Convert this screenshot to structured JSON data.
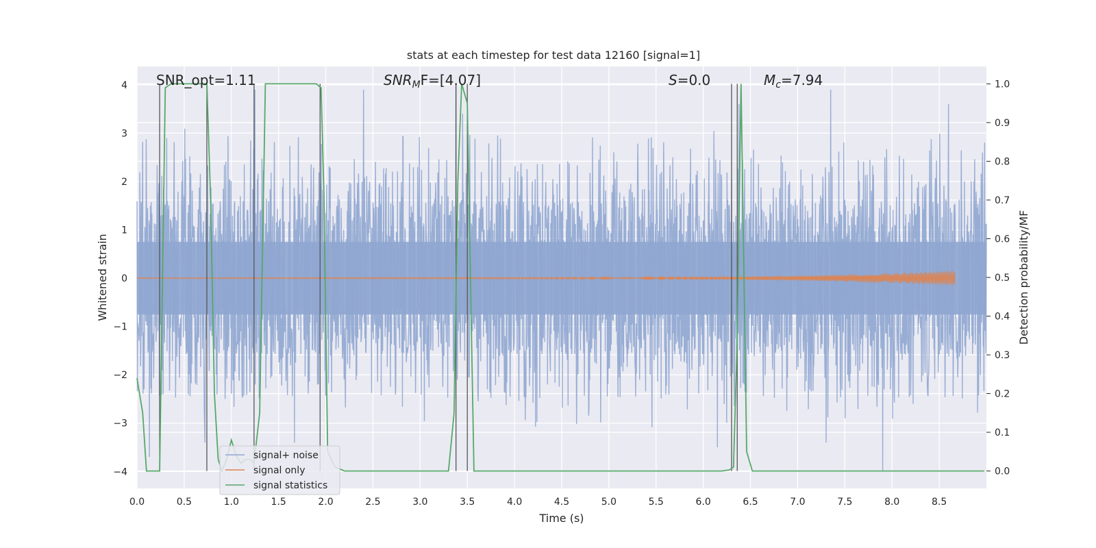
{
  "chart_data": {
    "type": "line",
    "title": "stats at each timestep for test data 12160 [signal=1]",
    "xlabel": "Time (s)",
    "ylabel": "Whitened strain",
    "y2label": "Detection probability/MF",
    "xlim": [
      0.0,
      9.0
    ],
    "ylim": [
      -4.35,
      4.38
    ],
    "y2lim": [
      -0.045,
      1.045
    ],
    "xticks": [
      "0.0",
      "0.5",
      "1.0",
      "1.5",
      "2.0",
      "2.5",
      "3.0",
      "3.5",
      "4.0",
      "4.5",
      "5.0",
      "5.5",
      "6.0",
      "6.5",
      "7.0",
      "7.5",
      "8.0",
      "8.5"
    ],
    "yticks": [
      "4",
      "3",
      "2",
      "1",
      "0",
      "−1",
      "−2",
      "−3",
      "−4"
    ],
    "y2ticks": [
      "1.0",
      "0.9",
      "0.8",
      "0.7",
      "0.6",
      "0.5",
      "0.4",
      "0.3",
      "0.2",
      "0.1",
      "0.0"
    ],
    "grid": true,
    "legend_position": "lower-left",
    "series": [
      {
        "name": "signal+ noise",
        "axis": "left",
        "kind": "noise",
        "color": "#8fa6d0",
        "band_abs_max": 1.6,
        "typical_peak": 2.5,
        "extreme_spikes": [
          {
            "t": 0.13,
            "y": -3.7
          },
          {
            "t": 0.72,
            "y": -3.4
          },
          {
            "t": 1.25,
            "y": 3.9
          },
          {
            "t": 1.67,
            "y": -3.4
          },
          {
            "t": 2.4,
            "y": 3.9
          },
          {
            "t": 3.38,
            "y": 4.0
          },
          {
            "t": 3.45,
            "y": 3.4
          },
          {
            "t": 6.15,
            "y": -3.5
          },
          {
            "t": 6.38,
            "y": 3.6
          },
          {
            "t": 7.3,
            "y": -3.4
          },
          {
            "t": 7.35,
            "y": 3.9
          },
          {
            "t": 7.9,
            "y": -4.0
          },
          {
            "t": 8.6,
            "y": 3.6
          }
        ]
      },
      {
        "name": "signal only",
        "axis": "left",
        "kind": "chirp",
        "color": "#dd8452",
        "start_t": 0.0,
        "end_t": 8.67,
        "max_amplitude": 0.15
      },
      {
        "name": "signal statistics",
        "axis": "right",
        "kind": "line",
        "color": "#55a868",
        "x": [
          0.0,
          0.06,
          0.1,
          0.15,
          0.2,
          0.24,
          0.3,
          0.36,
          0.42,
          0.5,
          0.6,
          0.7,
          0.74,
          0.78,
          0.82,
          0.86,
          0.9,
          0.95,
          1.0,
          1.05,
          1.1,
          1.15,
          1.2,
          1.24,
          1.3,
          1.36,
          1.42,
          1.5,
          1.6,
          1.7,
          1.8,
          1.9,
          1.95,
          1.98,
          2.02,
          2.1,
          2.2,
          2.5,
          3.0,
          3.3,
          3.36,
          3.4,
          3.44,
          3.5,
          3.57,
          3.7,
          4.0,
          4.5,
          4.9,
          5.0,
          5.5,
          6.0,
          6.2,
          6.28,
          6.32,
          6.36,
          6.4,
          6.46,
          6.52,
          7.0,
          8.0,
          8.98
        ],
        "y": [
          0.24,
          0.15,
          0.0,
          0.0,
          0.0,
          0.0,
          0.99,
          1.0,
          1.0,
          1.0,
          1.0,
          1.0,
          1.0,
          0.7,
          0.2,
          0.03,
          0.0,
          0.03,
          0.08,
          0.04,
          0.02,
          0.03,
          0.03,
          0.02,
          0.15,
          1.0,
          1.0,
          1.0,
          1.0,
          1.0,
          1.0,
          1.0,
          0.99,
          0.72,
          0.05,
          0.01,
          0.0,
          0.0,
          0.0,
          0.0,
          0.15,
          0.75,
          1.0,
          0.95,
          0.0,
          0.0,
          0.0,
          0.0,
          0.0,
          0.0,
          0.0,
          0.0,
          0.0,
          0.003,
          0.01,
          0.35,
          1.0,
          0.05,
          0.0,
          0.0,
          0.0,
          0.0
        ]
      }
    ],
    "vlines": [
      0.24,
      0.74,
      1.24,
      1.94,
      3.38,
      3.5,
      6.3,
      6.36
    ],
    "vline_color": "#555555",
    "annotations": {
      "snr_opt": "SNR_opt=1.11",
      "snr_mf_base": "SNR",
      "snr_mf_sub": "M",
      "snr_mf_rest": "F=[4.07]",
      "s_base": "S",
      "s_rest": "=0.0",
      "mc_base": "M",
      "mc_sub": "c",
      "mc_rest": "=7.94"
    }
  }
}
